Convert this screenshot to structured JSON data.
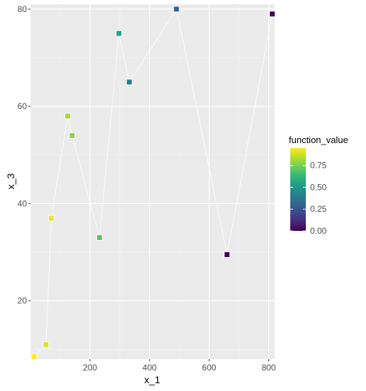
{
  "chart_data": {
    "type": "scatter",
    "xlabel": "x_1",
    "ylabel": "x_3",
    "xlim": [
      0,
      820
    ],
    "ylim": [
      8,
      81
    ],
    "x_ticks": [
      200,
      400,
      600,
      800
    ],
    "y_ticks": [
      20,
      40,
      60,
      80
    ],
    "grid": true,
    "connect_points": true,
    "colormap": "viridis",
    "legend": {
      "title": "function_value",
      "placement": "right",
      "ticks": [
        0.0,
        0.25,
        0.5,
        0.75
      ],
      "tick_labels": [
        "0.00",
        "0.25",
        "0.50",
        "0.75"
      ],
      "range": [
        0.0,
        0.95
      ]
    },
    "points": [
      {
        "x": 12,
        "y": 8.5,
        "value": 0.95
      },
      {
        "x": 70,
        "y": 37.0,
        "value": 0.92
      },
      {
        "x": 52,
        "y": 11.0,
        "value": 0.9
      },
      {
        "x": 125,
        "y": 58.0,
        "value": 0.82
      },
      {
        "x": 140,
        "y": 54.0,
        "value": 0.78
      },
      {
        "x": 232,
        "y": 33.0,
        "value": 0.7
      },
      {
        "x": 297,
        "y": 75.0,
        "value": 0.55
      },
      {
        "x": 332,
        "y": 65.0,
        "value": 0.4
      },
      {
        "x": 490,
        "y": 80.0,
        "value": 0.3
      },
      {
        "x": 660,
        "y": 29.5,
        "value": 0.02
      },
      {
        "x": 812,
        "y": 79.0,
        "value": 0.01
      }
    ]
  }
}
